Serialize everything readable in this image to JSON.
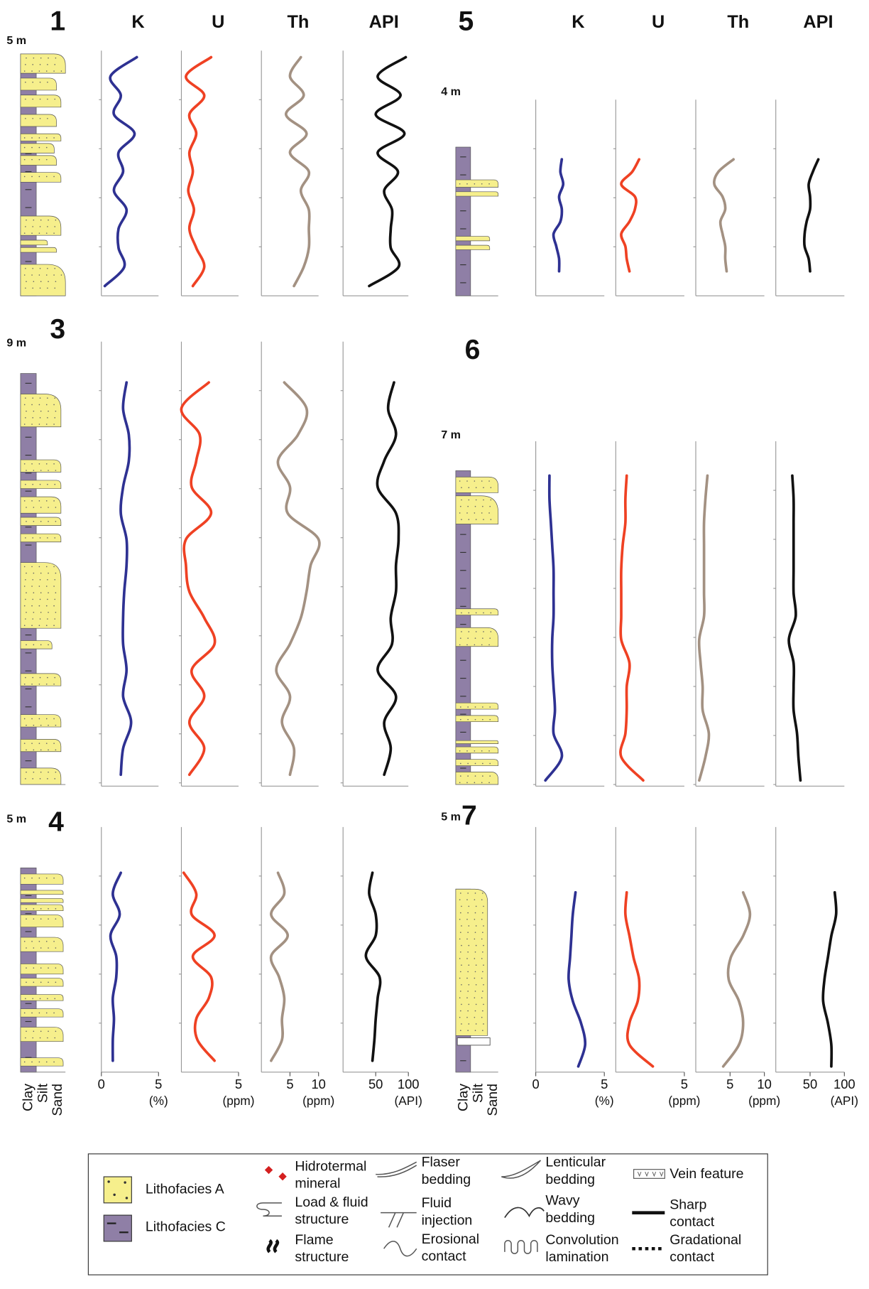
{
  "chart_data": [
    {
      "type": "line",
      "title": "1",
      "depth_label": "5 m",
      "series": [
        {
          "name": "K",
          "color": "#2e3192",
          "xlim": [
            0,
            5
          ],
          "values": [
            3.1,
            0.8,
            1.7,
            1.1,
            2.9,
            1.5,
            1.9,
            1.1,
            2.2,
            1.5,
            1.5,
            2.0,
            0.3
          ]
        },
        {
          "name": "U",
          "color": "#ef4123",
          "xlim": [
            0,
            5
          ],
          "values": [
            2.6,
            0.4,
            2.0,
            0.7,
            1.3,
            0.7,
            1.0,
            0.6,
            1.1,
            0.7,
            1.3,
            2.0,
            1.0
          ]
        },
        {
          "name": "Th",
          "color": "#a39182",
          "xlim": [
            0,
            10
          ],
          "values": [
            6.9,
            5.0,
            7.4,
            4.3,
            7.9,
            5.0,
            8.3,
            6.9,
            8.3,
            8.3,
            8.3,
            7.4,
            5.7
          ]
        },
        {
          "name": "API",
          "color": "#111111",
          "xlim": [
            0,
            100
          ],
          "values": [
            96,
            53,
            88,
            50,
            94,
            53,
            84,
            63,
            75,
            73,
            73,
            85,
            40
          ]
        }
      ]
    },
    {
      "type": "line",
      "title": "5",
      "depth_label": "4 m",
      "series": [
        {
          "name": "K",
          "color": "#2e3192",
          "xlim": [
            0,
            5
          ],
          "values": [
            1.9,
            1.8,
            2.0,
            1.7,
            1.9,
            1.8,
            1.3,
            1.5,
            1.7,
            1.7
          ]
        },
        {
          "name": "U",
          "color": "#ef4123",
          "xlim": [
            0,
            5
          ],
          "values": [
            1.7,
            1.2,
            0.4,
            1.4,
            1.4,
            1.0,
            0.4,
            0.7,
            0.8,
            1.0
          ]
        },
        {
          "name": "Th",
          "color": "#a39182",
          "xlim": [
            0,
            10
          ],
          "values": [
            5.5,
            3.3,
            2.7,
            3.9,
            4.3,
            3.6,
            3.9,
            4.3,
            4.3,
            4.5
          ]
        },
        {
          "name": "API",
          "color": "#111111",
          "xlim": [
            0,
            100
          ],
          "values": [
            62,
            54,
            48,
            50,
            50,
            45,
            42,
            42,
            48,
            50
          ]
        }
      ]
    },
    {
      "type": "line",
      "title": "3",
      "depth_label": "9 m",
      "series": [
        {
          "color": "#2e3192",
          "xlim": [
            0,
            5
          ],
          "values": [
            2.2,
            1.9,
            2.4,
            2.4,
            1.9,
            1.7,
            2.2,
            2.2,
            2.0,
            1.9,
            1.9,
            2.2,
            1.9,
            2.6,
            1.9,
            1.7
          ]
        },
        {
          "color": "#ef4123",
          "xlim": [
            0,
            5
          ],
          "values": [
            2.4,
            0,
            1.6,
            1.3,
            0.9,
            2.6,
            0.4,
            0.4,
            0.7,
            2.0,
            2.9,
            0.9,
            2.0,
            0.7,
            2.0,
            0.7
          ]
        },
        {
          "color": "#a39182",
          "xlim": [
            0,
            10
          ],
          "values": [
            4,
            7.9,
            6.4,
            2.9,
            5,
            4.6,
            10,
            8.6,
            7.9,
            6.9,
            5,
            2.6,
            5,
            3.6,
            5.7,
            5
          ]
        },
        {
          "color": "#111111",
          "xlim": [
            0,
            100
          ],
          "values": [
            78,
            69,
            81,
            63,
            53,
            81,
            85,
            81,
            81,
            73,
            75,
            53,
            81,
            63,
            73,
            63
          ]
        }
      ]
    },
    {
      "type": "line",
      "title": "6",
      "depth_label": "7 m",
      "series": [
        {
          "color": "#2e3192",
          "xlim": [
            0,
            5
          ],
          "values": [
            1.0,
            1.0,
            1.1,
            1.2,
            1.3,
            1.3,
            1.3,
            1.2,
            1.2,
            1.3,
            1.4,
            1.3,
            1.9,
            0.7
          ]
        },
        {
          "color": "#ef4123",
          "xlim": [
            0,
            5
          ],
          "values": [
            0.8,
            0.7,
            0.7,
            0.5,
            0.4,
            0.4,
            0.4,
            0.4,
            1.0,
            0.8,
            0.8,
            0.7,
            0.4,
            2.0
          ]
        },
        {
          "color": "#a39182",
          "xlim": [
            0,
            10
          ],
          "values": [
            1.7,
            1.4,
            1.2,
            1.2,
            1.2,
            1.2,
            1.2,
            0.5,
            0.7,
            1.0,
            1.0,
            1.9,
            1.4,
            0.5
          ]
        },
        {
          "color": "#111111",
          "xlim": [
            0,
            100
          ],
          "values": [
            24,
            26,
            26,
            26,
            26,
            26,
            29,
            19,
            26,
            26,
            26,
            31,
            33,
            36
          ]
        }
      ]
    },
    {
      "type": "line",
      "title": "4",
      "depth_label": "5 m",
      "lithology_labels": [
        "Clay",
        "Silt",
        "Sand"
      ],
      "series": [
        {
          "color": "#2e3192",
          "xlim": [
            0,
            5
          ],
          "xticks": [
            0,
            5
          ],
          "xlabel": "(%)",
          "values": [
            1.7,
            1.0,
            1.6,
            0.8,
            1.3,
            1.3,
            1.0,
            1.1,
            1.0,
            1.0
          ]
        },
        {
          "color": "#ef4123",
          "xlim": [
            0,
            5
          ],
          "xticks": [
            5
          ],
          "xlabel": "(ppm)",
          "values": [
            0.2,
            1.3,
            0.9,
            2.9,
            1.0,
            2.6,
            2.4,
            1.3,
            1.4,
            2.9
          ]
        },
        {
          "color": "#a39182",
          "xlim": [
            0,
            10
          ],
          "xticks": [
            5,
            10
          ],
          "xlabel": "(ppm)",
          "values": [
            2.9,
            4,
            1.7,
            4.6,
            1.7,
            3.1,
            4,
            3.6,
            3.6,
            1.7
          ]
        },
        {
          "color": "#111111",
          "xlim": [
            0,
            100
          ],
          "xticks": [
            50,
            100
          ],
          "xlabel": "(API)",
          "values": [
            45,
            40,
            50,
            50,
            35,
            56,
            53,
            50,
            48,
            45
          ]
        }
      ]
    },
    {
      "type": "line",
      "title": "7",
      "depth_label": "5 m",
      "lithology_labels": [
        "Clay",
        "Silt",
        "Sand"
      ],
      "series": [
        {
          "color": "#2e3192",
          "xlim": [
            0,
            5
          ],
          "xticks": [
            0,
            5
          ],
          "xlabel": "(%)",
          "values": [
            2.9,
            2.7,
            2.6,
            2.5,
            2.4,
            2.7,
            3.3,
            3.6,
            3.1
          ]
        },
        {
          "color": "#ef4123",
          "xlim": [
            0,
            5
          ],
          "xticks": [
            5
          ],
          "xlabel": "(ppm)",
          "values": [
            0.8,
            0.7,
            1.0,
            1.3,
            1.7,
            1.6,
            1.0,
            1.0,
            2.7
          ]
        },
        {
          "color": "#a39182",
          "xlim": [
            0,
            10
          ],
          "xticks": [
            5,
            10
          ],
          "xlabel": "(ppm)",
          "values": [
            6.9,
            7.9,
            6.9,
            5.1,
            4.8,
            6.3,
            6.9,
            6.3,
            4.0
          ]
        },
        {
          "color": "#111111",
          "xlim": [
            0,
            100
          ],
          "xticks": [
            50,
            100
          ],
          "xlabel": "(API)",
          "values": [
            86,
            88,
            81,
            76,
            71,
            69,
            76,
            81,
            81
          ]
        }
      ]
    }
  ],
  "legend": {
    "items": [
      [
        "Lithofacies A"
      ],
      [
        "Lithofacies C"
      ],
      [
        "Hidrotermal",
        "mineral"
      ],
      [
        "Load & fluid",
        "structure"
      ],
      [
        "Flame",
        "structure"
      ],
      [
        "Flaser",
        "bedding"
      ],
      [
        "Fluid",
        "injection"
      ],
      [
        "Erosional",
        "contact"
      ],
      [
        "Lenticular",
        "bedding"
      ],
      [
        "Wavy",
        "bedding"
      ],
      [
        "Convolution",
        "lamination"
      ],
      [
        "Vein feature"
      ],
      [
        "Sharp",
        "contact"
      ],
      [
        "Gradational",
        "contact"
      ]
    ]
  }
}
